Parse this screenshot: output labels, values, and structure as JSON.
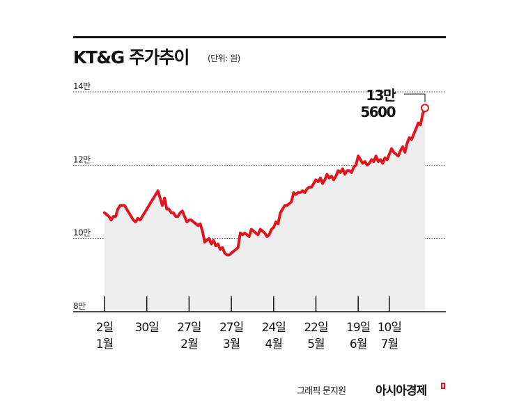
{
  "title": "KT&G 주가추이",
  "unit": "(단위: 원)",
  "credit": "그래픽 문지원",
  "brand": "아시아경제",
  "colors": {
    "line": "#e0161e",
    "area": "#eeeeee",
    "axis": "#111111",
    "grid": "#333333"
  },
  "chart_data": {
    "type": "line",
    "ylim": [
      80000,
      140000
    ],
    "yticks": [
      {
        "value": 80000,
        "label": "8만"
      },
      {
        "value": 100000,
        "label": "10만"
      },
      {
        "value": 120000,
        "label": "12만"
      },
      {
        "value": 140000,
        "label": "14만"
      }
    ],
    "xticks": [
      {
        "index": 0,
        "day": "2일",
        "month": "1월"
      },
      {
        "index": 19,
        "day": "30일",
        "month": ""
      },
      {
        "index": 38,
        "day": "27일",
        "month": "2월"
      },
      {
        "index": 57,
        "day": "27일",
        "month": "3월"
      },
      {
        "index": 76,
        "day": "24일",
        "month": "4월"
      },
      {
        "index": 95,
        "day": "22일",
        "month": "5월"
      },
      {
        "index": 114,
        "day": "19일",
        "month": "6월"
      },
      {
        "index": 128,
        "day": "10일",
        "month": "7월"
      }
    ],
    "values": [
      107000,
      106500,
      106000,
      105000,
      106000,
      106000,
      108000,
      109000,
      109000,
      109000,
      108000,
      107000,
      106000,
      105000,
      104500,
      105500,
      105000,
      106000,
      107000,
      108000,
      109000,
      110000,
      111000,
      112000,
      113000,
      111000,
      109000,
      111000,
      108000,
      108000,
      107000,
      107000,
      106000,
      106000,
      107000,
      107500,
      106000,
      104500,
      105000,
      105000,
      104500,
      104000,
      103500,
      104000,
      102000,
      99000,
      99500,
      100000,
      98500,
      99500,
      98000,
      98500,
      97000,
      97500,
      96000,
      95500,
      95500,
      96000,
      96500,
      97000,
      97500,
      101500,
      101000,
      101500,
      101000,
      100500,
      102500,
      102000,
      101500,
      101000,
      102500,
      102000,
      101500,
      100500,
      101000,
      102500,
      103000,
      104500,
      104000,
      107000,
      108000,
      109000,
      109000,
      109500,
      110000,
      112500,
      112000,
      112500,
      112500,
      113000,
      112500,
      113500,
      114000,
      114000,
      115000,
      116000,
      115500,
      116500,
      115000,
      116000,
      117500,
      116500,
      117000,
      116000,
      117000,
      118500,
      118000,
      119000,
      117500,
      118500,
      118500,
      118000,
      119500,
      120000,
      122500,
      121500,
      120500,
      121000,
      120000,
      120500,
      121500,
      121000,
      122500,
      121000,
      121500,
      120500,
      122000,
      121500,
      123000,
      124500,
      123500,
      123000,
      122500,
      124000,
      125000,
      123500,
      126000,
      127500,
      127000,
      128500,
      130000,
      131500,
      131000,
      134000,
      135600
    ],
    "last_label": [
      "13만",
      "5600"
    ]
  }
}
